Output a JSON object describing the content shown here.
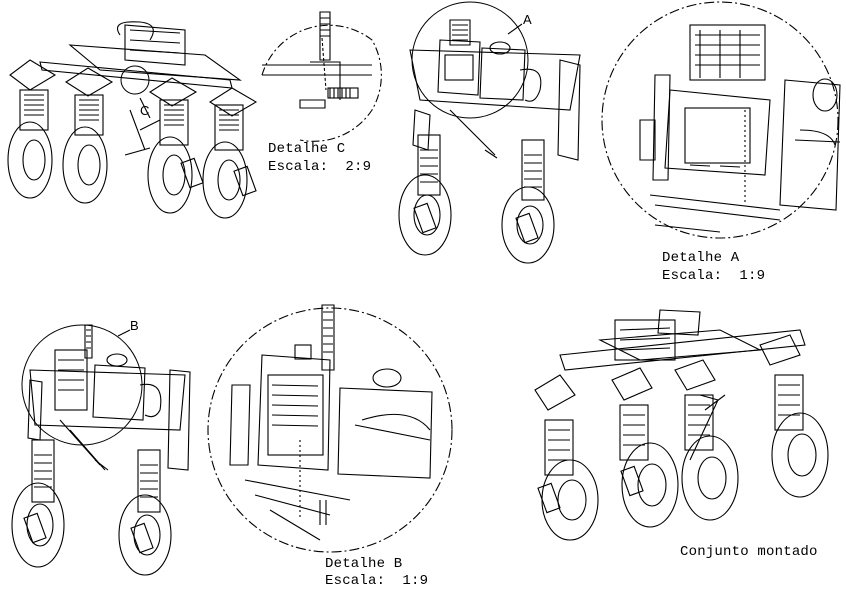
{
  "labels": {
    "detail_c": {
      "title": "Detalhe C",
      "scale": "Escala:  2:9"
    },
    "detail_a": {
      "title": "Detalhe A",
      "scale": "Escala:  1:9"
    },
    "detail_b": {
      "title": "Detalhe B",
      "scale": "Escala:  1:9"
    },
    "assembly": {
      "title": "Conjunto montado"
    }
  },
  "callouts": {
    "c": "C",
    "a": "A",
    "b": "B"
  },
  "colors": {
    "line": "#000000",
    "background": "#ffffff"
  }
}
